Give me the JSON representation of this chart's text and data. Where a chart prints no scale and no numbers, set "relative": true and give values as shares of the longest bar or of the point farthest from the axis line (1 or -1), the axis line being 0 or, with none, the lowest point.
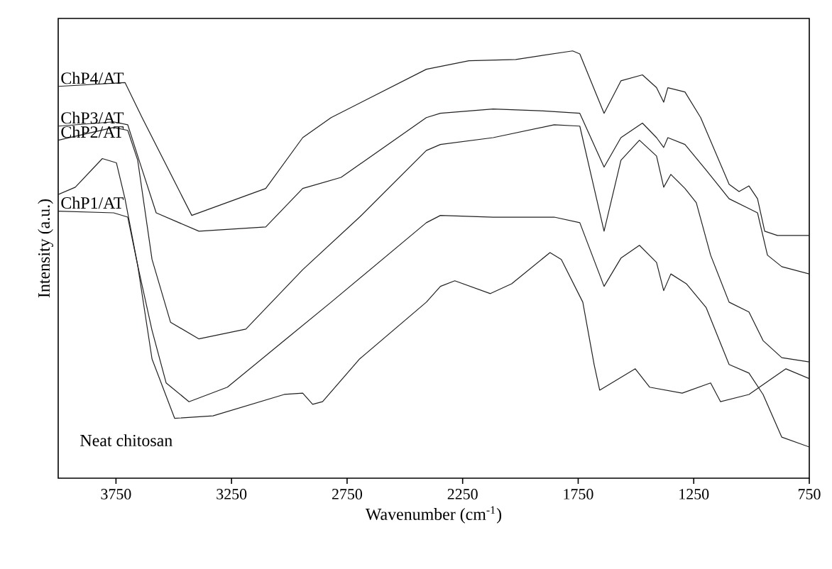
{
  "chart_data": {
    "type": "line",
    "relative": true,
    "xlabel": "Wavenumber (cm$^{-1}$)",
    "ylabel": "Intensity (a.u.)",
    "xlim": [
      4000,
      750
    ],
    "xticks": [
      3750,
      3250,
      2750,
      2250,
      1750,
      1250,
      750
    ],
    "grid": false,
    "marker": "none",
    "line_style": "solid",
    "series": [
      {
        "name": "ChP4/AT",
        "color": "#231f20",
        "x": [
          4000,
          3711,
          3637,
          3422,
          3102,
          2942,
          2819,
          2407,
          2223,
          2020,
          1774,
          1743,
          1638,
          1565,
          1472,
          1411,
          1380,
          1362,
          1288,
          1220,
          1097,
          1054,
          1011,
          974,
          943,
          888,
          750
        ],
        "values": [
          0.917,
          0.926,
          0.844,
          0.615,
          0.678,
          0.797,
          0.844,
          0.957,
          0.977,
          0.98,
          1.0,
          0.993,
          0.854,
          0.93,
          0.944,
          0.914,
          0.88,
          0.914,
          0.904,
          0.844,
          0.688,
          0.671,
          0.684,
          0.654,
          0.578,
          0.568,
          0.568
        ]
      },
      {
        "name": "ChP3/AT",
        "color": "#231f20",
        "x": [
          4000,
          3760,
          3699,
          3650,
          3576,
          3391,
          3102,
          2942,
          2776,
          2407,
          2346,
          2118,
          1915,
          1743,
          1638,
          1565,
          1472,
          1411,
          1380,
          1362,
          1288,
          1196,
          1097,
          1011,
          974,
          931,
          869,
          750
        ],
        "values": [
          0.824,
          0.834,
          0.827,
          0.744,
          0.621,
          0.578,
          0.588,
          0.678,
          0.704,
          0.844,
          0.854,
          0.864,
          0.86,
          0.854,
          0.728,
          0.797,
          0.831,
          0.797,
          0.774,
          0.797,
          0.781,
          0.721,
          0.654,
          0.631,
          0.621,
          0.522,
          0.495,
          0.478
        ]
      },
      {
        "name": "ChP2/AT",
        "color": "#231f20",
        "x": [
          4000,
          3760,
          3699,
          3656,
          3594,
          3514,
          3391,
          3188,
          2942,
          2696,
          2407,
          2346,
          2118,
          1854,
          1743,
          1638,
          1565,
          1485,
          1411,
          1380,
          1349,
          1288,
          1239,
          1177,
          1097,
          1011,
          950,
          869,
          750
        ],
        "values": [
          0.791,
          0.821,
          0.814,
          0.744,
          0.512,
          0.365,
          0.326,
          0.349,
          0.488,
          0.611,
          0.767,
          0.781,
          0.797,
          0.827,
          0.824,
          0.578,
          0.744,
          0.791,
          0.754,
          0.681,
          0.711,
          0.678,
          0.645,
          0.522,
          0.412,
          0.389,
          0.322,
          0.282,
          0.272
        ]
      },
      {
        "name": "ChP1/AT",
        "color": "#231f20",
        "x": [
          4000,
          3760,
          3699,
          3656,
          3594,
          3533,
          3434,
          3268,
          3022,
          2819,
          2407,
          2346,
          2118,
          1854,
          1743,
          1638,
          1565,
          1485,
          1411,
          1380,
          1349,
          1282,
          1196,
          1097,
          1011,
          950,
          869,
          750
        ],
        "values": [
          0.625,
          0.621,
          0.611,
          0.498,
          0.346,
          0.223,
          0.179,
          0.213,
          0.322,
          0.412,
          0.598,
          0.615,
          0.611,
          0.611,
          0.598,
          0.449,
          0.515,
          0.545,
          0.505,
          0.439,
          0.478,
          0.455,
          0.399,
          0.266,
          0.246,
          0.196,
          0.096,
          0.073
        ]
      },
      {
        "name": "Neat chitosan",
        "color": "#231f20",
        "x": [
          4000,
          3926,
          3809,
          3748,
          3711,
          3656,
          3594,
          3496,
          3330,
          3022,
          2942,
          2899,
          2856,
          2696,
          2407,
          2346,
          2284,
          2130,
          2038,
          1872,
          1823,
          1730,
          1681,
          1657,
          1503,
          1441,
          1300,
          1177,
          1134,
          1011,
          913,
          851,
          750
        ],
        "values": [
          0.664,
          0.681,
          0.748,
          0.738,
          0.654,
          0.498,
          0.279,
          0.14,
          0.146,
          0.196,
          0.199,
          0.173,
          0.179,
          0.279,
          0.412,
          0.449,
          0.462,
          0.432,
          0.455,
          0.528,
          0.512,
          0.412,
          0.266,
          0.206,
          0.256,
          0.213,
          0.199,
          0.223,
          0.179,
          0.196,
          0.233,
          0.256,
          0.233
        ]
      }
    ]
  }
}
